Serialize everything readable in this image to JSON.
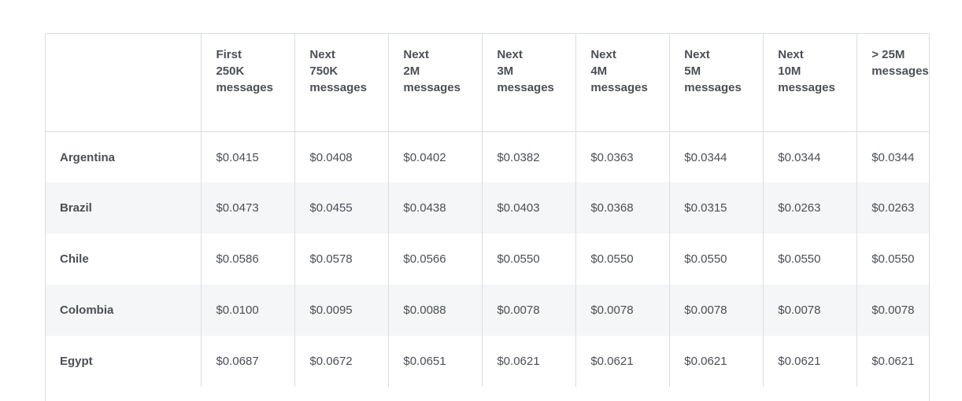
{
  "table": {
    "corner": "",
    "columns": [
      {
        "line1": "First",
        "line2": "250K",
        "line3": "messages"
      },
      {
        "line1": "Next",
        "line2": "750K",
        "line3": "messages"
      },
      {
        "line1": "Next",
        "line2": "2M",
        "line3": "messages"
      },
      {
        "line1": "Next",
        "line2": "3M",
        "line3": "messages"
      },
      {
        "line1": "Next",
        "line2": "4M",
        "line3": "messages"
      },
      {
        "line1": "Next",
        "line2": "5M",
        "line3": "messages"
      },
      {
        "line1": "Next",
        "line2": "10M",
        "line3": "messages"
      },
      {
        "line1": "> 25M",
        "line2": "messages",
        "line3": ""
      }
    ],
    "rows": [
      {
        "country": "Argentina",
        "prices": [
          "$0.0415",
          "$0.0408",
          "$0.0402",
          "$0.0382",
          "$0.0363",
          "$0.0344",
          "$0.0344",
          "$0.0344"
        ]
      },
      {
        "country": "Brazil",
        "prices": [
          "$0.0473",
          "$0.0455",
          "$0.0438",
          "$0.0403",
          "$0.0368",
          "$0.0315",
          "$0.0263",
          "$0.0263"
        ]
      },
      {
        "country": "Chile",
        "prices": [
          "$0.0586",
          "$0.0578",
          "$0.0566",
          "$0.0550",
          "$0.0550",
          "$0.0550",
          "$0.0550",
          "$0.0550"
        ]
      },
      {
        "country": "Colombia",
        "prices": [
          "$0.0100",
          "$0.0095",
          "$0.0088",
          "$0.0078",
          "$0.0078",
          "$0.0078",
          "$0.0078",
          "$0.0078"
        ]
      },
      {
        "country": "Egypt",
        "prices": [
          "$0.0687",
          "$0.0672",
          "$0.0651",
          "$0.0621",
          "$0.0621",
          "$0.0621",
          "$0.0621",
          "$0.0621"
        ]
      }
    ]
  }
}
